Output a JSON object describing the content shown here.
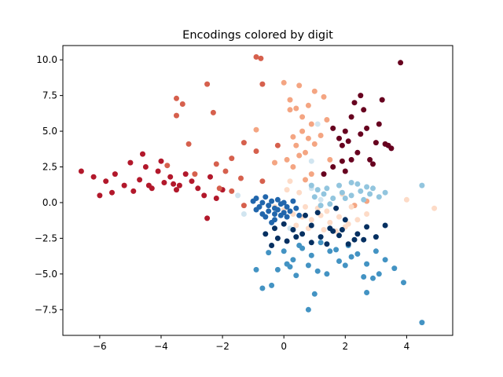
{
  "chart_data": {
    "type": "scatter",
    "title": "Encodings colored by digit",
    "xlabel": "",
    "ylabel": "",
    "xlim": [
      -7.2,
      5.5
    ],
    "ylim": [
      -9.3,
      11.0
    ],
    "xticks": [
      -6,
      -4,
      -2,
      0,
      2,
      4
    ],
    "yticks": [
      -7.5,
      -5.0,
      -2.5,
      0.0,
      2.5,
      5.0,
      7.5,
      10.0
    ],
    "xtick_labels": [
      "−6",
      "−4",
      "−2",
      "0",
      "2",
      "4"
    ],
    "ytick_labels": [
      "−7.5",
      "−5.0",
      "−2.5",
      "0.0",
      "2.5",
      "5.0",
      "7.5",
      "10.0"
    ],
    "grid": false,
    "legend": "none",
    "series": [
      {
        "color": "#67001f",
        "points": [
          [
            1.9,
            4.0
          ],
          [
            2.0,
            5.0
          ],
          [
            2.2,
            6.0
          ],
          [
            2.4,
            3.5
          ],
          [
            2.5,
            4.8
          ],
          [
            2.7,
            5.2
          ],
          [
            2.6,
            6.5
          ],
          [
            2.8,
            3.0
          ],
          [
            3.0,
            4.2
          ],
          [
            3.1,
            5.5
          ],
          [
            2.3,
            7.0
          ],
          [
            2.0,
            2.2
          ],
          [
            2.2,
            3.0
          ],
          [
            3.3,
            4.1
          ],
          [
            3.5,
            3.8
          ],
          [
            1.6,
            5.2
          ],
          [
            1.8,
            4.5
          ],
          [
            3.8,
            9.8
          ],
          [
            3.2,
            7.2
          ],
          [
            1.6,
            2.5
          ],
          [
            1.3,
            2.0
          ],
          [
            2.9,
            2.7
          ],
          [
            2.5,
            7.5
          ],
          [
            1.9,
            2.9
          ],
          [
            3.4,
            4.0
          ],
          [
            2.1,
            4.3
          ]
        ]
      },
      {
        "color": "#b2182b",
        "points": [
          [
            -6.6,
            2.2
          ],
          [
            -6.2,
            1.8
          ],
          [
            -6.0,
            0.5
          ],
          [
            -5.8,
            1.5
          ],
          [
            -5.5,
            2.0
          ],
          [
            -5.2,
            1.2
          ],
          [
            -5.0,
            2.8
          ],
          [
            -4.9,
            0.8
          ],
          [
            -4.7,
            1.6
          ],
          [
            -4.5,
            2.5
          ],
          [
            -4.3,
            1.0
          ],
          [
            -4.1,
            2.2
          ],
          [
            -3.9,
            1.4
          ],
          [
            -3.7,
            1.8
          ],
          [
            -3.5,
            0.9
          ],
          [
            -3.4,
            1.2
          ],
          [
            -3.2,
            2.0
          ],
          [
            -3.0,
            1.5
          ],
          [
            -2.8,
            1.0
          ],
          [
            -2.6,
            0.5
          ],
          [
            -2.4,
            1.8
          ],
          [
            -2.5,
            -1.1
          ],
          [
            -2.2,
            0.3
          ],
          [
            -2.0,
            0.9
          ],
          [
            -4.6,
            3.4
          ],
          [
            -4.0,
            2.9
          ],
          [
            -5.6,
            0.7
          ],
          [
            -4.4,
            1.2
          ],
          [
            -3.6,
            1.3
          ]
        ]
      },
      {
        "color": "#d6604d",
        "points": [
          [
            -0.9,
            10.2
          ],
          [
            -0.75,
            10.1
          ],
          [
            -2.5,
            8.3
          ],
          [
            -0.7,
            8.3
          ],
          [
            -3.5,
            7.3
          ],
          [
            -3.3,
            6.9
          ],
          [
            -3.5,
            6.1
          ],
          [
            -2.3,
            6.3
          ],
          [
            -1.3,
            4.2
          ],
          [
            -0.9,
            3.6
          ],
          [
            -1.7,
            3.1
          ],
          [
            -2.2,
            2.7
          ],
          [
            -3.1,
            4.1
          ],
          [
            -2.1,
            1.0
          ],
          [
            -1.7,
            0.8
          ],
          [
            -1.4,
            1.7
          ],
          [
            -1.9,
            2.2
          ],
          [
            -0.2,
            4.0
          ],
          [
            -0.7,
            1.5
          ],
          [
            -2.9,
            2.0
          ],
          [
            -3.8,
            2.6
          ],
          [
            -1.3,
            -0.2
          ]
        ]
      },
      {
        "color": "#f4a582",
        "points": [
          [
            0.0,
            8.4
          ],
          [
            0.5,
            8.2
          ],
          [
            1.0,
            7.8
          ],
          [
            1.3,
            7.4
          ],
          [
            0.2,
            6.5
          ],
          [
            0.6,
            6.0
          ],
          [
            0.9,
            5.5
          ],
          [
            1.2,
            4.7
          ],
          [
            0.4,
            4.0
          ],
          [
            0.7,
            3.5
          ],
          [
            0.1,
            3.0
          ],
          [
            0.3,
            2.5
          ],
          [
            1.5,
            3.0
          ],
          [
            0.9,
            2.0
          ],
          [
            0.6,
            5.0
          ],
          [
            0.2,
            7.2
          ],
          [
            -0.9,
            5.1
          ],
          [
            0.5,
            3.3
          ],
          [
            1.4,
            5.8
          ],
          [
            0.8,
            6.8
          ],
          [
            0.3,
            4.6
          ],
          [
            1.0,
            4.1
          ],
          [
            -0.3,
            2.8
          ],
          [
            0.7,
            1.6
          ],
          [
            2.3,
            -0.2
          ],
          [
            2.7,
            0.1
          ],
          [
            0.4,
            6.6
          ],
          [
            0.8,
            4.5
          ]
        ]
      },
      {
        "color": "#fddbc7",
        "points": [
          [
            0.0,
            -0.5
          ],
          [
            0.3,
            -0.8
          ],
          [
            0.6,
            -1.0
          ],
          [
            0.9,
            -1.2
          ],
          [
            1.2,
            -0.9
          ],
          [
            1.5,
            -1.4
          ],
          [
            1.8,
            -1.0
          ],
          [
            2.1,
            -1.5
          ],
          [
            2.4,
            -1.2
          ],
          [
            2.7,
            -0.8
          ],
          [
            0.4,
            -1.6
          ],
          [
            0.8,
            -1.8
          ],
          [
            1.3,
            -1.9
          ],
          [
            1.7,
            -2.0
          ],
          [
            0.2,
            1.5
          ],
          [
            0.5,
            0.7
          ],
          [
            -0.3,
            -0.3
          ],
          [
            4.0,
            0.2
          ],
          [
            4.9,
            -0.4
          ],
          [
            1.1,
            -0.4
          ],
          [
            1.4,
            -0.6
          ],
          [
            2.0,
            -1.7
          ],
          [
            0.1,
            0.9
          ],
          [
            1.9,
            0.6
          ],
          [
            0.7,
            -0.3
          ],
          [
            2.2,
            -0.3
          ]
        ]
      },
      {
        "color": "#d1e5f0",
        "points": [
          [
            -1.3,
            -0.8
          ],
          [
            -0.8,
            -0.3
          ],
          [
            0.2,
            -1.8
          ],
          [
            0.9,
            1.0
          ],
          [
            1.1,
            5.5
          ],
          [
            0.9,
            2.9
          ],
          [
            0.6,
            -2.2
          ],
          [
            1.2,
            0.2
          ],
          [
            -1.5,
            0.5
          ]
        ]
      },
      {
        "color": "#92c5de",
        "points": [
          [
            1.0,
            0.4
          ],
          [
            1.3,
            0.6
          ],
          [
            1.6,
            0.3
          ],
          [
            1.9,
            0.7
          ],
          [
            2.2,
            0.5
          ],
          [
            2.5,
            0.8
          ],
          [
            2.8,
            0.6
          ],
          [
            3.1,
            0.4
          ],
          [
            3.3,
            0.7
          ],
          [
            1.4,
            1.0
          ],
          [
            1.8,
            1.2
          ],
          [
            2.4,
            1.3
          ],
          [
            2.6,
            0.2
          ],
          [
            1.2,
            -0.2
          ],
          [
            4.5,
            1.2
          ],
          [
            2.9,
            1.0
          ],
          [
            2.2,
            1.4
          ],
          [
            0.9,
            1.2
          ],
          [
            1.5,
            -0.1
          ],
          [
            2.0,
            0.3
          ],
          [
            2.7,
            1.1
          ],
          [
            1.1,
            0.9
          ]
        ]
      },
      {
        "color": "#4393c3",
        "points": [
          [
            0.0,
            -3.4
          ],
          [
            0.3,
            -4.0
          ],
          [
            0.6,
            -3.2
          ],
          [
            0.9,
            -3.7
          ],
          [
            1.2,
            -2.8
          ],
          [
            1.5,
            -3.4
          ],
          [
            1.8,
            -4.1
          ],
          [
            2.1,
            -3.0
          ],
          [
            2.4,
            -3.6
          ],
          [
            2.7,
            -4.3
          ],
          [
            3.0,
            -3.4
          ],
          [
            3.3,
            -4.0
          ],
          [
            3.6,
            -4.6
          ],
          [
            3.9,
            -5.6
          ],
          [
            4.5,
            -8.4
          ],
          [
            0.8,
            -7.5
          ],
          [
            1.0,
            -6.4
          ],
          [
            -0.7,
            -6.0
          ],
          [
            -0.4,
            -5.8
          ],
          [
            -0.9,
            -4.7
          ],
          [
            -0.2,
            -4.7
          ],
          [
            0.4,
            -5.1
          ],
          [
            1.4,
            -5.0
          ],
          [
            2.0,
            -4.4
          ],
          [
            2.7,
            -6.3
          ],
          [
            2.6,
            -5.2
          ],
          [
            0.8,
            -4.4
          ],
          [
            -0.5,
            -3.5
          ],
          [
            0.1,
            -4.3
          ],
          [
            1.7,
            -3.3
          ],
          [
            2.9,
            -5.3
          ],
          [
            0.5,
            -3.0
          ],
          [
            1.1,
            -4.8
          ],
          [
            2.2,
            -3.8
          ],
          [
            3.1,
            -5.0
          ],
          [
            0.2,
            -4.5
          ]
        ]
      },
      {
        "color": "#2166ac",
        "points": [
          [
            -0.9,
            0.3
          ],
          [
            -0.7,
            0.0
          ],
          [
            -0.5,
            -0.2
          ],
          [
            -0.3,
            -0.4
          ],
          [
            -0.1,
            -0.1
          ],
          [
            0.1,
            -0.3
          ],
          [
            -0.6,
            0.4
          ],
          [
            -0.4,
            0.1
          ],
          [
            -0.2,
            0.2
          ],
          [
            0.0,
            0.0
          ],
          [
            -0.8,
            -0.3
          ],
          [
            -0.5,
            -0.6
          ],
          [
            -0.3,
            -0.8
          ],
          [
            -0.1,
            -0.9
          ],
          [
            0.2,
            -0.6
          ],
          [
            0.1,
            -1.0
          ],
          [
            -0.3,
            -1.2
          ],
          [
            -0.6,
            -1.0
          ],
          [
            -0.9,
            -0.5
          ],
          [
            0.3,
            0.1
          ],
          [
            -0.2,
            -0.5
          ],
          [
            0.0,
            -0.7
          ],
          [
            0.4,
            -0.4
          ],
          [
            -0.7,
            -0.8
          ],
          [
            -1.0,
            0.1
          ],
          [
            0.5,
            -0.9
          ],
          [
            -0.4,
            -1.4
          ]
        ]
      },
      {
        "color": "#053061",
        "points": [
          [
            -0.6,
            -2.2
          ],
          [
            -0.3,
            -1.8
          ],
          [
            0.0,
            -1.5
          ],
          [
            0.3,
            -1.9
          ],
          [
            0.6,
            -2.2
          ],
          [
            0.9,
            -2.8
          ],
          [
            1.2,
            -2.4
          ],
          [
            1.5,
            -1.8
          ],
          [
            1.8,
            -2.3
          ],
          [
            2.1,
            -2.9
          ],
          [
            2.4,
            -2.2
          ],
          [
            2.7,
            -1.7
          ],
          [
            3.0,
            -2.4
          ],
          [
            3.3,
            -1.6
          ],
          [
            0.1,
            -2.7
          ],
          [
            -0.4,
            -3.0
          ],
          [
            0.7,
            -0.9
          ],
          [
            1.1,
            -0.7
          ],
          [
            1.7,
            -0.4
          ],
          [
            2.0,
            -1.2
          ],
          [
            0.4,
            -2.4
          ],
          [
            1.4,
            -2.9
          ],
          [
            2.3,
            -2.6
          ],
          [
            0.9,
            -1.6
          ],
          [
            -0.2,
            -2.5
          ],
          [
            1.6,
            -2.0
          ],
          [
            2.6,
            -2.6
          ],
          [
            1.9,
            -1.9
          ]
        ]
      }
    ]
  }
}
